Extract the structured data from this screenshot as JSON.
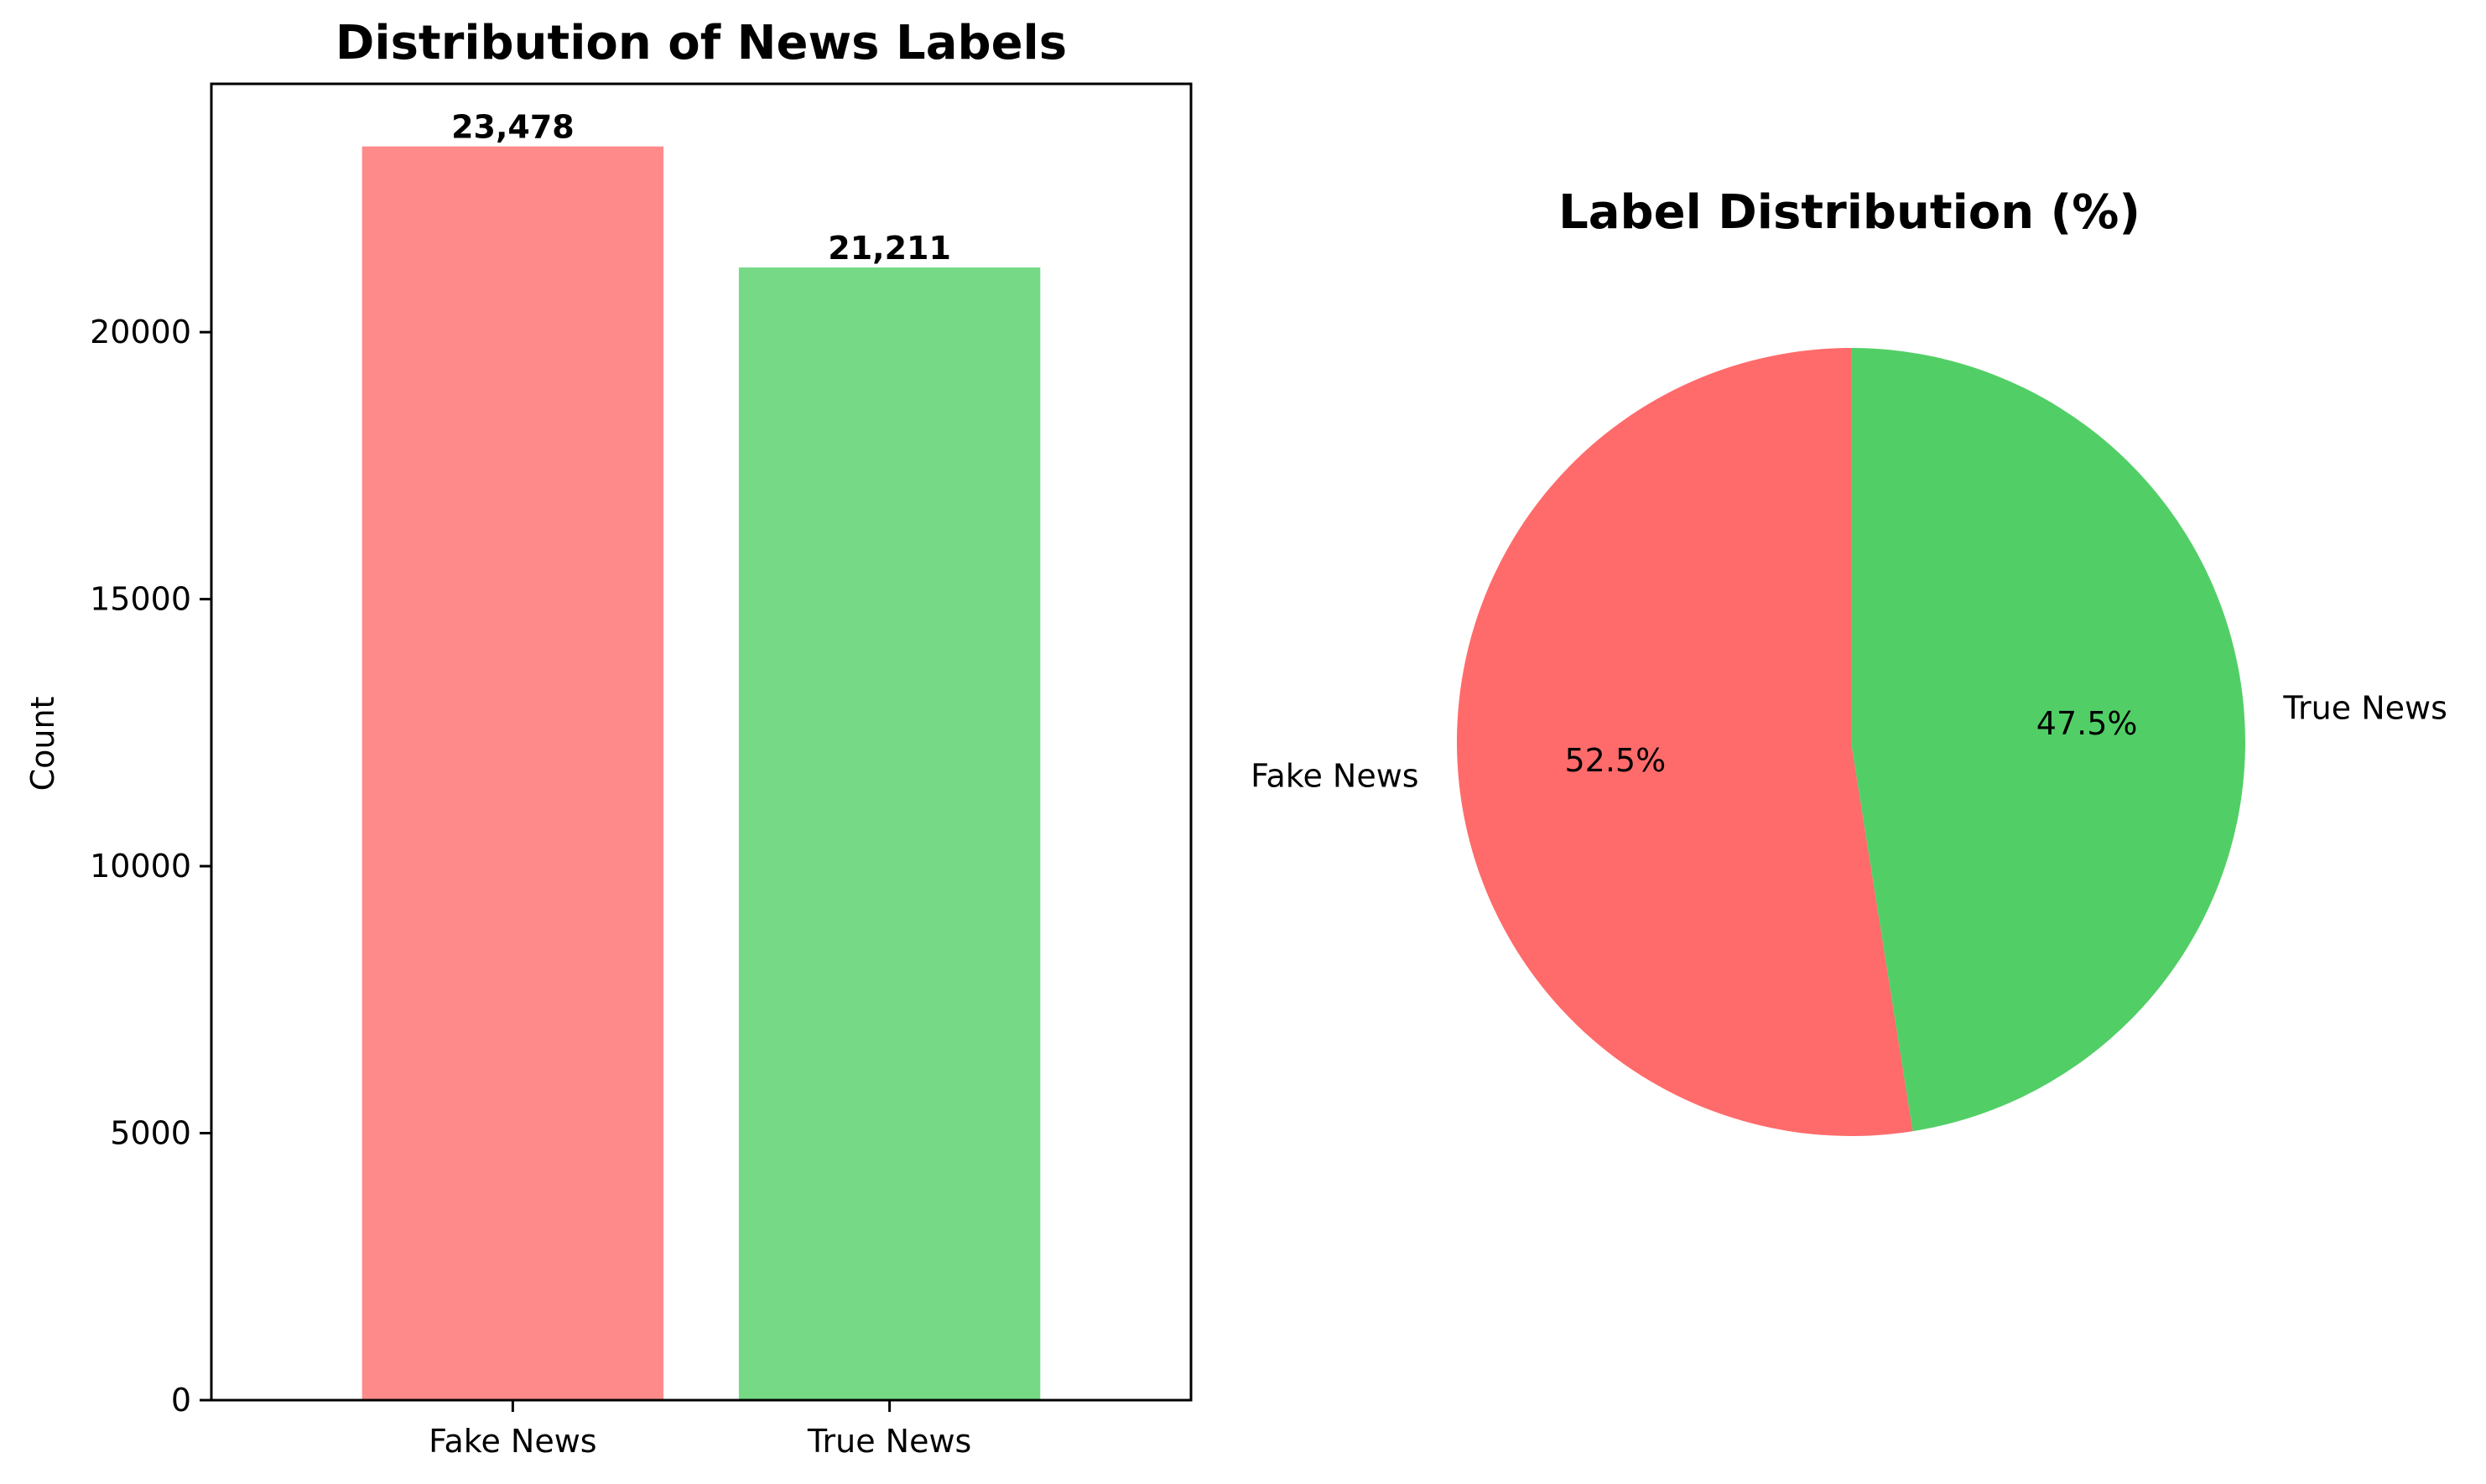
{
  "chart_data": [
    {
      "type": "bar",
      "title": "Distribution of News Labels",
      "xlabel": "",
      "ylabel": "Count",
      "categories": [
        "Fake News",
        "True News"
      ],
      "values": [
        23478,
        21211
      ],
      "value_labels": [
        "23,478",
        "21,211"
      ],
      "colors": [
        "#ff8a8a",
        "#75d985"
      ],
      "ylim": [
        0,
        24650
      ],
      "yticks": [
        0,
        5000,
        10000,
        15000,
        20000
      ],
      "ytick_labels": [
        "0",
        "5000",
        "10000",
        "15000",
        "20000"
      ],
      "grid": false
    },
    {
      "type": "pie",
      "title": "Label Distribution (%)",
      "labels": [
        "Fake News",
        "True News"
      ],
      "values": [
        52.5,
        47.5
      ],
      "pct_labels": [
        "52.5%",
        "47.5%"
      ],
      "colors": [
        "#ff6b6b",
        "#51cf66"
      ],
      "startangle": 90,
      "direction": "counterclockwise"
    }
  ]
}
